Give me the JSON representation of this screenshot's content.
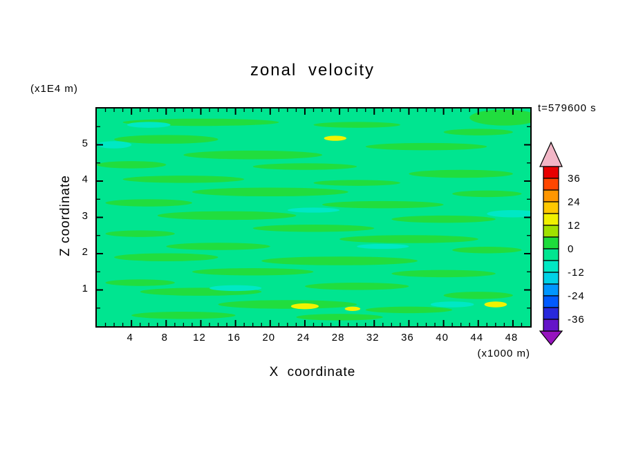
{
  "chart_data": {
    "type": "heatmap",
    "title": "zonal velocity",
    "timestamp": "t=579600 s",
    "x_axis": {
      "label": "X coordinate",
      "unit": "(x1000 m)",
      "range": [
        0,
        50
      ],
      "ticks": [
        4,
        8,
        12,
        16,
        20,
        24,
        28,
        32,
        36,
        40,
        44,
        48
      ],
      "minor_step": 1
    },
    "y_axis": {
      "label": "Z coordinate",
      "unit": "(x1E4 m)",
      "range": [
        0,
        6
      ],
      "ticks": [
        1,
        2,
        3,
        4,
        5
      ],
      "minor_step": 0.5
    },
    "colorbar": {
      "boundaries": [
        42,
        36,
        30,
        24,
        18,
        12,
        6,
        0,
        -6,
        -12,
        -18,
        -24,
        -30,
        -36,
        -42
      ],
      "labels": [
        "36",
        "24",
        "12",
        "0",
        "-12",
        "-24",
        "-36"
      ],
      "label_step": 12,
      "band_colors_top_to_bottom": [
        "#E80000",
        "#FF4600",
        "#FF9600",
        "#FFC800",
        "#F0F000",
        "#A0E100",
        "#1EDC3C",
        "#00E590",
        "#00E8C4",
        "#00D2E6",
        "#0096FF",
        "#005AFF",
        "#2828DC",
        "#6414C8"
      ],
      "arrow_top_color": "#F2B6C6",
      "arrow_bottom_color": "#9614BE"
    },
    "field": {
      "description": "near-zero zonal velocity field; background band -6..0, horizontal streaks in band 0..6, few patches -12..-6 and spots 12..18",
      "background_color": "#00E590",
      "blob_colors": {
        "g": "#21DD3E",
        "m": "#00E8C4",
        "y": "#F2F200"
      },
      "blobs": [
        [
          12,
          5.62,
          9,
          0.1,
          "g"
        ],
        [
          30,
          5.55,
          5,
          0.08,
          "g"
        ],
        [
          47,
          5.75,
          4,
          0.22,
          "g"
        ],
        [
          44,
          5.35,
          4,
          0.09,
          "g"
        ],
        [
          8,
          5.15,
          6,
          0.12,
          "g"
        ],
        [
          38,
          4.95,
          7,
          0.1,
          "g"
        ],
        [
          18,
          4.72,
          8,
          0.12,
          "g"
        ],
        [
          4,
          4.45,
          4,
          0.1,
          "g"
        ],
        [
          24,
          4.4,
          6,
          0.09,
          "g"
        ],
        [
          42,
          4.2,
          6,
          0.11,
          "g"
        ],
        [
          10,
          4.05,
          7,
          0.1,
          "g"
        ],
        [
          30,
          3.95,
          5,
          0.08,
          "g"
        ],
        [
          20,
          3.7,
          9,
          0.12,
          "g"
        ],
        [
          45,
          3.65,
          4,
          0.09,
          "g"
        ],
        [
          6,
          3.4,
          5,
          0.1,
          "g"
        ],
        [
          33,
          3.35,
          7,
          0.1,
          "g"
        ],
        [
          15,
          3.05,
          8,
          0.12,
          "g"
        ],
        [
          40,
          2.95,
          6,
          0.1,
          "g"
        ],
        [
          25,
          2.7,
          7,
          0.1,
          "g"
        ],
        [
          5,
          2.55,
          4,
          0.09,
          "g"
        ],
        [
          36,
          2.4,
          8,
          0.11,
          "g"
        ],
        [
          14,
          2.2,
          6,
          0.1,
          "g"
        ],
        [
          45,
          2.1,
          4,
          0.09,
          "g"
        ],
        [
          8,
          1.9,
          6,
          0.11,
          "g"
        ],
        [
          28,
          1.8,
          9,
          0.12,
          "g"
        ],
        [
          18,
          1.5,
          7,
          0.1,
          "g"
        ],
        [
          40,
          1.45,
          6,
          0.1,
          "g"
        ],
        [
          5,
          1.2,
          4,
          0.09,
          "g"
        ],
        [
          30,
          1.1,
          6,
          0.1,
          "g"
        ],
        [
          12,
          0.95,
          7,
          0.11,
          "g"
        ],
        [
          44,
          0.85,
          4,
          0.1,
          "g"
        ],
        [
          22,
          0.6,
          8,
          0.12,
          "g"
        ],
        [
          36,
          0.45,
          5,
          0.09,
          "g"
        ],
        [
          10,
          0.3,
          6,
          0.1,
          "g"
        ],
        [
          28,
          0.25,
          5,
          0.09,
          "g"
        ],
        [
          2,
          5.0,
          2,
          0.1,
          "m"
        ],
        [
          48,
          3.1,
          3,
          0.1,
          "m"
        ],
        [
          25,
          3.2,
          3,
          0.07,
          "m"
        ],
        [
          16,
          1.05,
          3,
          0.08,
          "m"
        ],
        [
          33,
          2.2,
          3,
          0.07,
          "m"
        ],
        [
          6,
          5.55,
          2.5,
          0.08,
          "m"
        ],
        [
          41,
          0.6,
          2.5,
          0.08,
          "m"
        ],
        [
          27.5,
          5.18,
          1.3,
          0.07,
          "y"
        ],
        [
          24,
          0.55,
          1.6,
          0.08,
          "y"
        ],
        [
          46,
          0.6,
          1.3,
          0.08,
          "y"
        ],
        [
          29.5,
          0.48,
          0.9,
          0.06,
          "y"
        ]
      ]
    }
  }
}
